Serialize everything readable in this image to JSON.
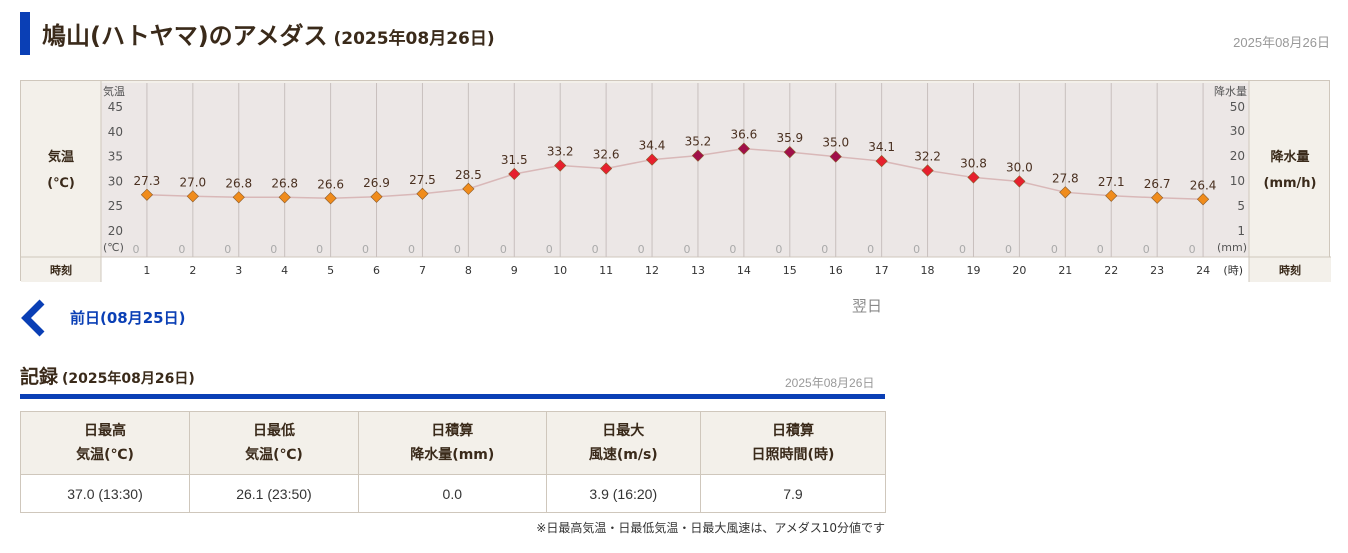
{
  "header": {
    "title": "鳩山(ハトヤマ)のアメダス",
    "subtitle": "(2025年08月26日)",
    "date": "2025年08月26日"
  },
  "chart_labels": {
    "left_axis_top": "気温",
    "right_axis_top": "降水量",
    "left_title_1": "気温",
    "left_title_2": "(℃)",
    "right_title_1": "降水量",
    "right_title_2": "(mm/h)",
    "left_unit": "(℃)",
    "right_unit": "(mm)",
    "x_unit": "(時)",
    "row_label_left": "時刻",
    "row_label_right": "時刻"
  },
  "chart_data": {
    "type": "line",
    "x": [
      1,
      2,
      3,
      4,
      5,
      6,
      7,
      8,
      9,
      10,
      11,
      12,
      13,
      14,
      15,
      16,
      17,
      18,
      19,
      20,
      21,
      22,
      23,
      24
    ],
    "series": [
      {
        "name": "気温",
        "values": [
          27.3,
          27.0,
          26.8,
          26.8,
          26.6,
          26.9,
          27.5,
          28.5,
          31.5,
          33.2,
          32.6,
          34.4,
          35.2,
          36.6,
          35.9,
          35.0,
          34.1,
          32.2,
          30.8,
          30.0,
          27.8,
          27.1,
          26.7,
          26.4
        ]
      },
      {
        "name": "降水量",
        "values": [
          0,
          0,
          0,
          0,
          0,
          0,
          0,
          0,
          0,
          0,
          0,
          0,
          0,
          0,
          0,
          0,
          0,
          0,
          0,
          0,
          0,
          0,
          0,
          0
        ]
      }
    ],
    "y_left": {
      "ticks": [
        20,
        25,
        30,
        35,
        40,
        45
      ],
      "range": [
        20,
        45
      ]
    },
    "y_right": {
      "ticks": [
        1,
        5,
        10,
        20,
        30,
        50
      ]
    },
    "grid": true,
    "point_colors": {
      "low": "#f08c1c",
      "mid": "#e6202e",
      "high": "#a0104a"
    }
  },
  "nav": {
    "prev": "前日(08月25日)",
    "next": "翌日"
  },
  "records": {
    "title": "記録",
    "subtitle": "(2025年08月26日)",
    "date": "2025年08月26日",
    "headers": [
      [
        "日最高",
        "気温(℃)"
      ],
      [
        "日最低",
        "気温(℃)"
      ],
      [
        "日積算",
        "降水量(mm)"
      ],
      [
        "日最大",
        "風速(m/s)"
      ],
      [
        "日積算",
        "日照時間(時)"
      ]
    ],
    "values": [
      "37.0 (13:30)",
      "26.1 (23:50)",
      "0.0",
      "3.9 (16:20)",
      "7.9"
    ],
    "note": "※日最高気温・日最低気温・日最大風速は、アメダス10分値です"
  }
}
